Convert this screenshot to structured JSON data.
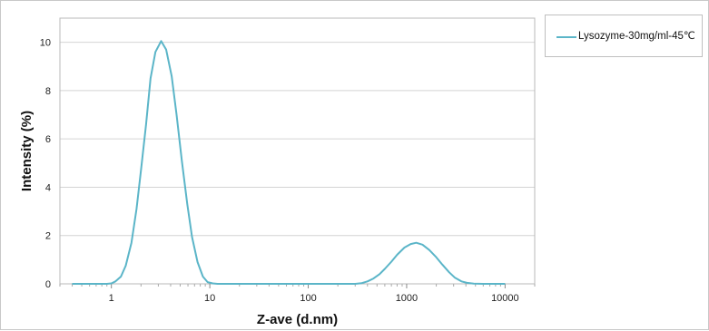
{
  "chart_data": {
    "type": "line",
    "title": "",
    "xlabel": "Z-ave (d.nm)",
    "ylabel": "Intensity (%)",
    "x_scale": "log",
    "xlim": [
      0.3,
      20000
    ],
    "ylim": [
      0,
      11
    ],
    "x_ticks": [
      1,
      10,
      100,
      1000,
      10000
    ],
    "x_tick_labels": [
      "1",
      "10",
      "100",
      "1000",
      "10000"
    ],
    "y_ticks": [
      0,
      2,
      4,
      6,
      8,
      10
    ],
    "y_tick_labels": [
      "0",
      "2",
      "4",
      "6",
      "8",
      "10"
    ],
    "grid": true,
    "legend_position": "top-right-outside",
    "series": [
      {
        "name": "Lysozyme-30mg/ml-45℃",
        "color": "#5bb5c8",
        "x": [
          0.4,
          0.5,
          0.6,
          0.7,
          0.8,
          0.9,
          1.0,
          1.1,
          1.25,
          1.4,
          1.6,
          1.8,
          2.0,
          2.25,
          2.5,
          2.8,
          3.2,
          3.6,
          4.1,
          4.6,
          5.2,
          5.9,
          6.6,
          7.5,
          8.5,
          9.5,
          10.7,
          12.0,
          13.5,
          15.2,
          17.0,
          20,
          30,
          50,
          100,
          200,
          300,
          350,
          400,
          460,
          530,
          600,
          700,
          800,
          950,
          1100,
          1250,
          1450,
          1700,
          2000,
          2300,
          2700,
          3100,
          3600,
          4100,
          4800,
          6000,
          8000,
          10000
        ],
        "y": [
          0,
          0,
          0,
          0,
          0,
          0,
          0.02,
          0.1,
          0.3,
          0.75,
          1.7,
          3.1,
          4.7,
          6.6,
          8.5,
          9.6,
          10.05,
          9.7,
          8.6,
          7.0,
          5.1,
          3.3,
          1.95,
          0.9,
          0.3,
          0.07,
          0.02,
          0,
          0,
          0,
          0,
          0,
          0,
          0,
          0,
          0,
          0,
          0.03,
          0.1,
          0.22,
          0.4,
          0.62,
          0.92,
          1.2,
          1.5,
          1.65,
          1.7,
          1.62,
          1.4,
          1.1,
          0.8,
          0.48,
          0.25,
          0.1,
          0.04,
          0.01,
          0,
          0,
          0
        ]
      }
    ]
  }
}
